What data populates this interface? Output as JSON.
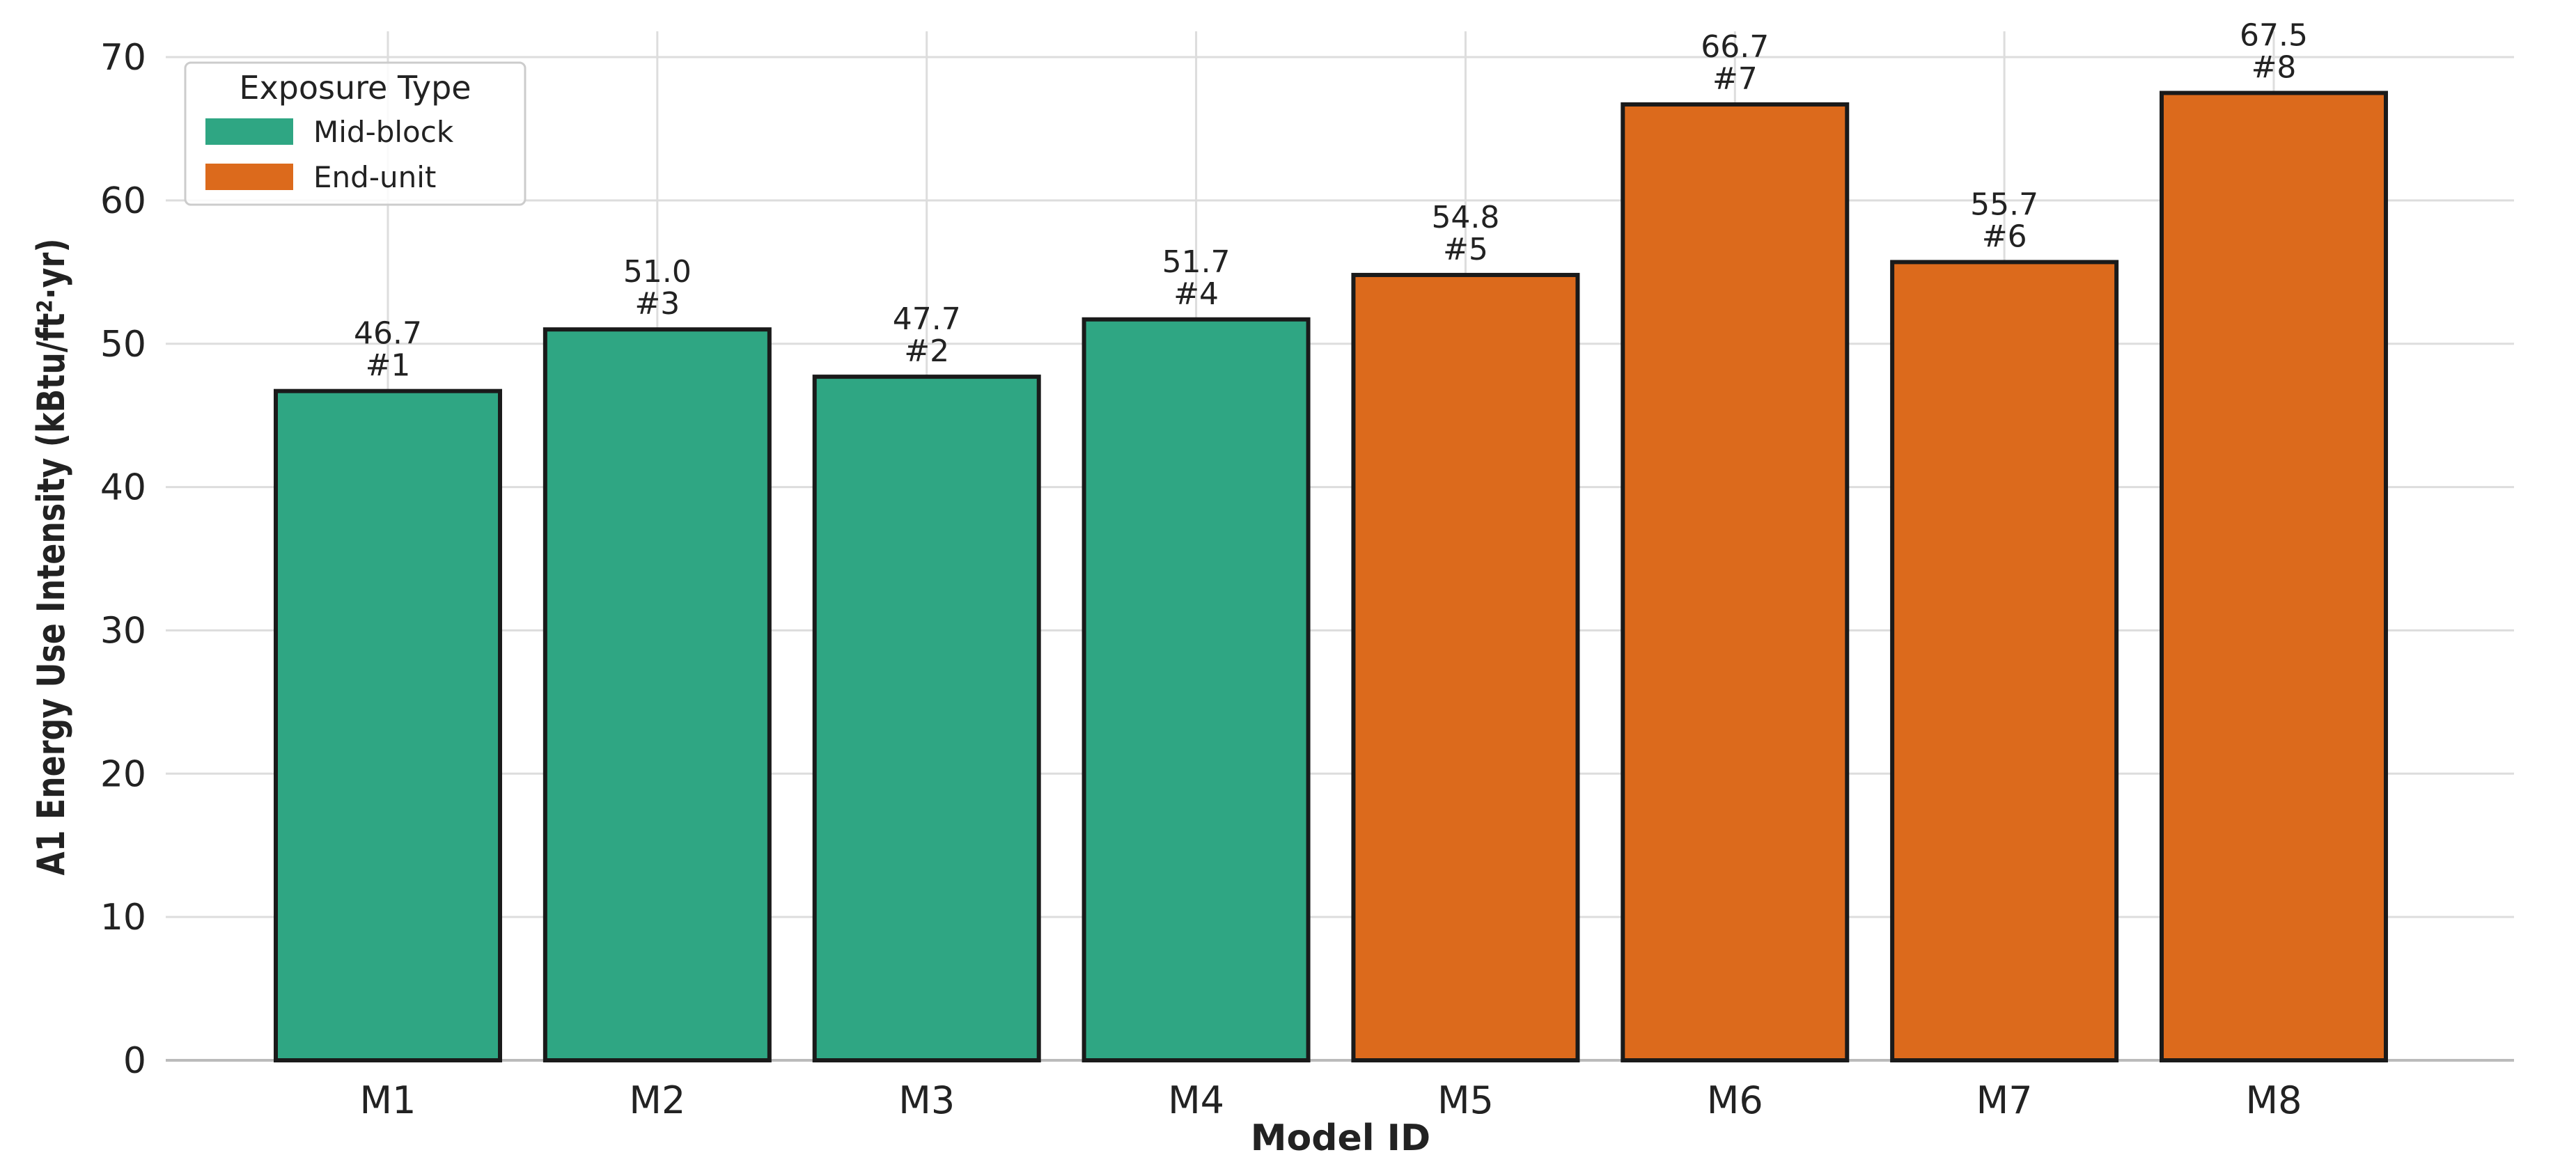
{
  "chart_data": {
    "type": "bar",
    "title": "",
    "xlabel": "Model ID",
    "ylabel": "A1 Energy Use Intensity (kBtu/ft²·yr)",
    "ylim": [
      0,
      70
    ],
    "yticks": [
      0,
      10,
      20,
      30,
      40,
      50,
      60,
      70
    ],
    "grid": true,
    "categories": [
      "M1",
      "M2",
      "M3",
      "M4",
      "M5",
      "M6",
      "M7",
      "M8"
    ],
    "values": [
      46.7,
      51.0,
      47.7,
      51.7,
      54.8,
      66.7,
      55.7,
      67.5
    ],
    "value_labels": [
      "46.7",
      "51.0",
      "47.7",
      "51.7",
      "54.8",
      "66.7",
      "55.7",
      "67.5"
    ],
    "rank_labels": [
      "#1",
      "#3",
      "#2",
      "#4",
      "#5",
      "#7",
      "#6",
      "#8"
    ],
    "groups": [
      "Mid-block",
      "Mid-block",
      "Mid-block",
      "Mid-block",
      "End-unit",
      "End-unit",
      "End-unit",
      "End-unit"
    ],
    "legend": {
      "title": "Exposure Type",
      "placement": "top-left",
      "entries": [
        {
          "label": "Mid-block",
          "color": "#1b9e77"
        },
        {
          "label": "End-unit",
          "color": "#d95f02"
        }
      ]
    },
    "colors": {
      "Mid-block": "#2fa683",
      "End-unit": "#dc6a1c",
      "bar_edge": "#1a1a1a",
      "grid": "#dddddd",
      "axis": "#bbbbbb",
      "text": "#222222"
    }
  }
}
